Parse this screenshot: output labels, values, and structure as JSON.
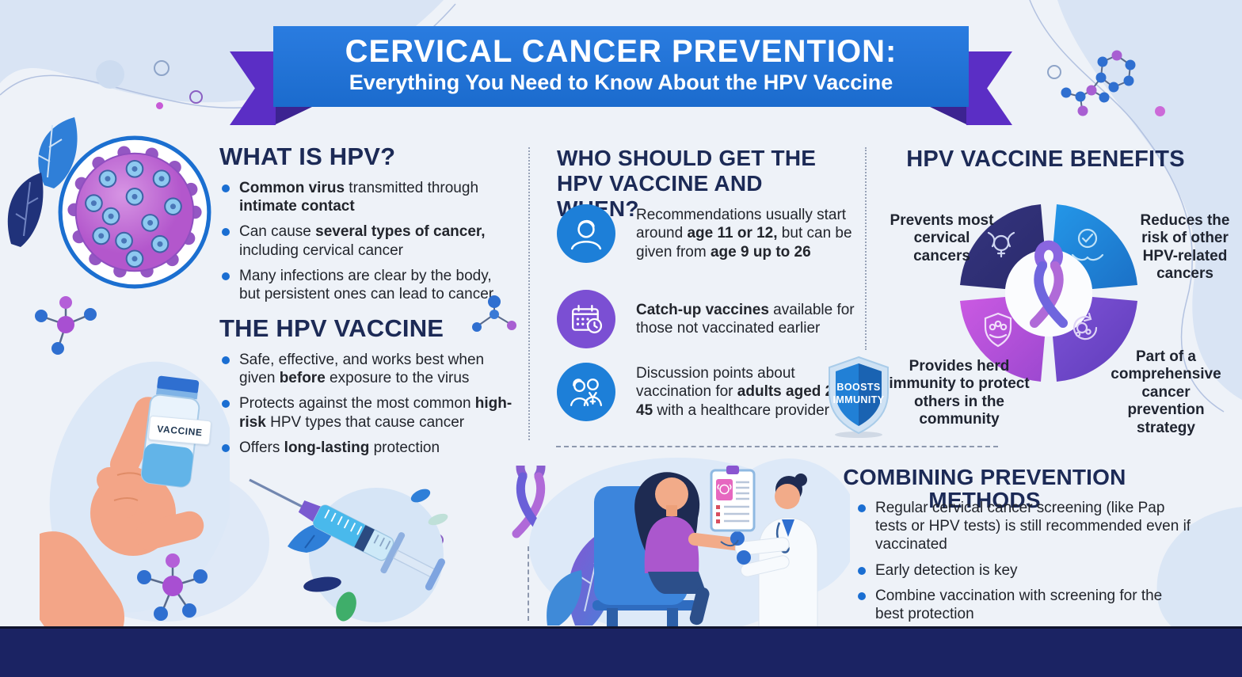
{
  "banner": {
    "title": "CERVICAL CANCER PREVENTION:",
    "subtitle": "Everything You Need to Know About the HPV Vaccine"
  },
  "what_is_hpv": {
    "heading": "WHAT IS HPV?",
    "bullets": [
      "**Common virus** transmitted through **intimate contact**",
      "Can cause **several types of cancer,** including cervical cancer",
      "Many infections are clear by the body, but persistent ones can lead to cancer"
    ]
  },
  "the_hpv_vaccine": {
    "heading": "THE HPV VACCINE",
    "bullets": [
      "Safe, effective, and works best when given **before** exposure to the virus",
      "Protects against the most common **high-risk** HPV types that cause cancer",
      "Offers **long-lasting** protection"
    ]
  },
  "who_should_get": {
    "heading": "WHO SHOULD GET THE HPV VACCINE AND WHEN?",
    "items": [
      {
        "icon": "child-icon",
        "text": "Recommendations usually start around **age 11 or 12,** but can be given from **age 9 up to 26**"
      },
      {
        "icon": "calendar-clock-icon",
        "text": "**Catch-up vaccines** available for those not vaccinated earlier"
      },
      {
        "icon": "adults-healthcare-icon",
        "text": "Discussion points about vaccination for **adults aged 27 to 45** with a healthcare provider"
      }
    ]
  },
  "benefits": {
    "heading": "HPV VACCINE BENEFITS",
    "wheel_labels": [
      "Prevents most cervical cancers",
      "Reduces the risk of other HPV-related cancers",
      "Provides herd immunity to protect others in the community",
      "Part of a comprehensive cancer prevention strategy"
    ],
    "wheel_icons": [
      "uterus-icon",
      "hands-check-icon",
      "shield-community-icon",
      "cycle-arrows-icon"
    ],
    "badge": {
      "line1": "BOOSTS",
      "line2": "IMMUNITY"
    }
  },
  "combining": {
    "heading": "COMBINING PREVENTION METHODS",
    "bullets": [
      "Regular cervical cancer screening (like Pap tests or HPV tests) is still recommended even if vaccinated",
      "Early detection is key",
      "Combine vaccination with screening for the best protection"
    ]
  },
  "illustrations": {
    "vaccine_vial_label": "VACCINE"
  },
  "colors": {
    "banner_blue": "#1d73d3",
    "ribbon_purple": "#5b2ec5",
    "heading_navy": "#1c2a56",
    "bullet_blue": "#1a6ed2",
    "wheel_navy": "#2f3080",
    "wheel_blue": "#1f87dc",
    "wheel_magenta": "#bb50dc",
    "wheel_violet": "#6f46c6",
    "footer_navy": "#1b2363"
  }
}
